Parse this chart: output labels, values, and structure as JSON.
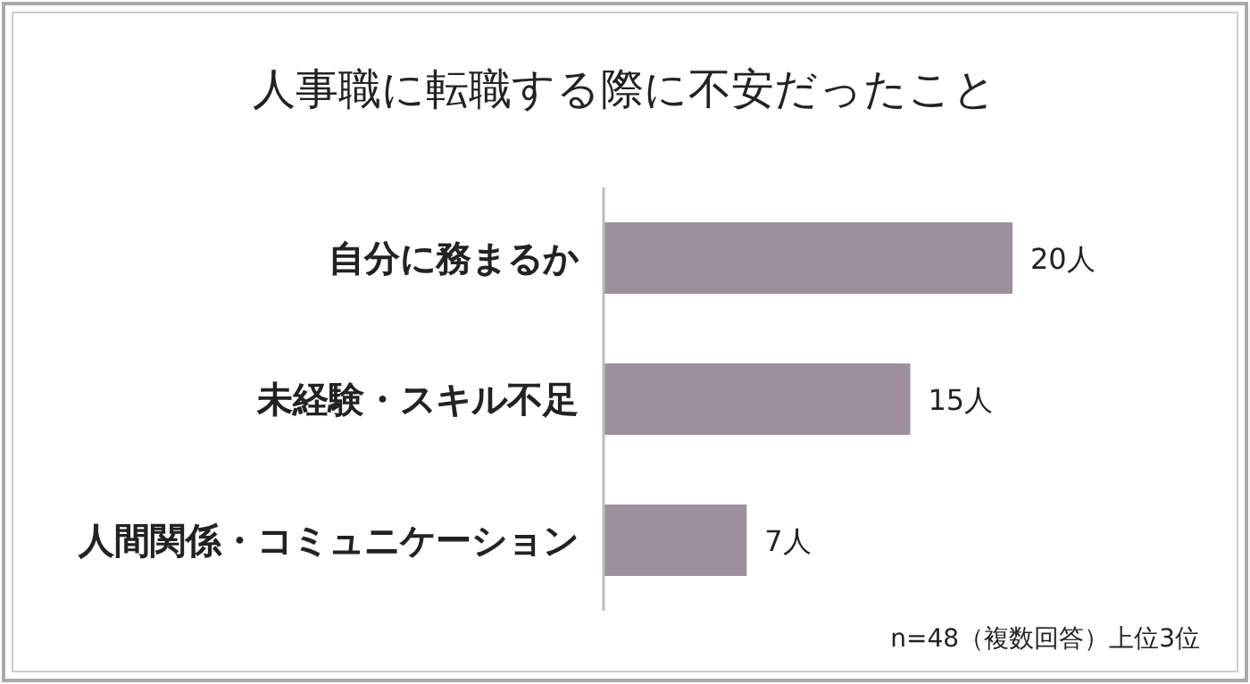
{
  "chart_data": {
    "type": "bar",
    "orientation": "horizontal",
    "title": "人事職に転職する際に不安だったこと",
    "categories": [
      "自分に務まるか",
      "未経験・スキル不足",
      "人間関係・コミュニケーション"
    ],
    "values": [
      20,
      15,
      7
    ],
    "color": "#9e8f9e",
    "value_labels": [
      "20人",
      "15人",
      "7人"
    ],
    "annotations": [
      "n=48（複数回答）上位3位"
    ]
  }
}
